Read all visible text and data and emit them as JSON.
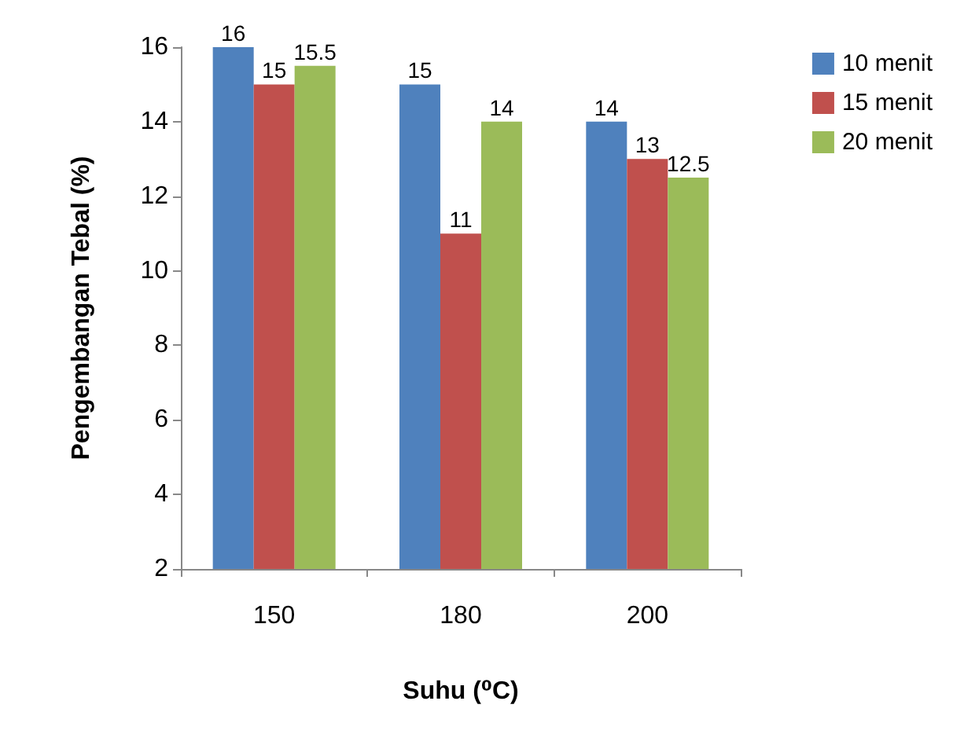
{
  "chart_data": {
    "type": "bar",
    "xlabel": "Suhu (⁰C)",
    "ylabel": "Pengembangan Tebal (%)",
    "categories": [
      "150",
      "180",
      "200"
    ],
    "series": [
      {
        "name": "10 menit",
        "color": "#4f81bd",
        "values": [
          16,
          15,
          14
        ]
      },
      {
        "name": "15 menit",
        "color": "#c0504d",
        "values": [
          15,
          11,
          13
        ]
      },
      {
        "name": "20 menit",
        "color": "#9bbb59",
        "values": [
          15.5,
          14,
          12.5
        ]
      }
    ],
    "ylim": [
      2,
      16
    ],
    "yticks": [
      2,
      4,
      6,
      8,
      10,
      12,
      14,
      16
    ],
    "grid": false,
    "legend": "top right",
    "data_labels": true
  }
}
